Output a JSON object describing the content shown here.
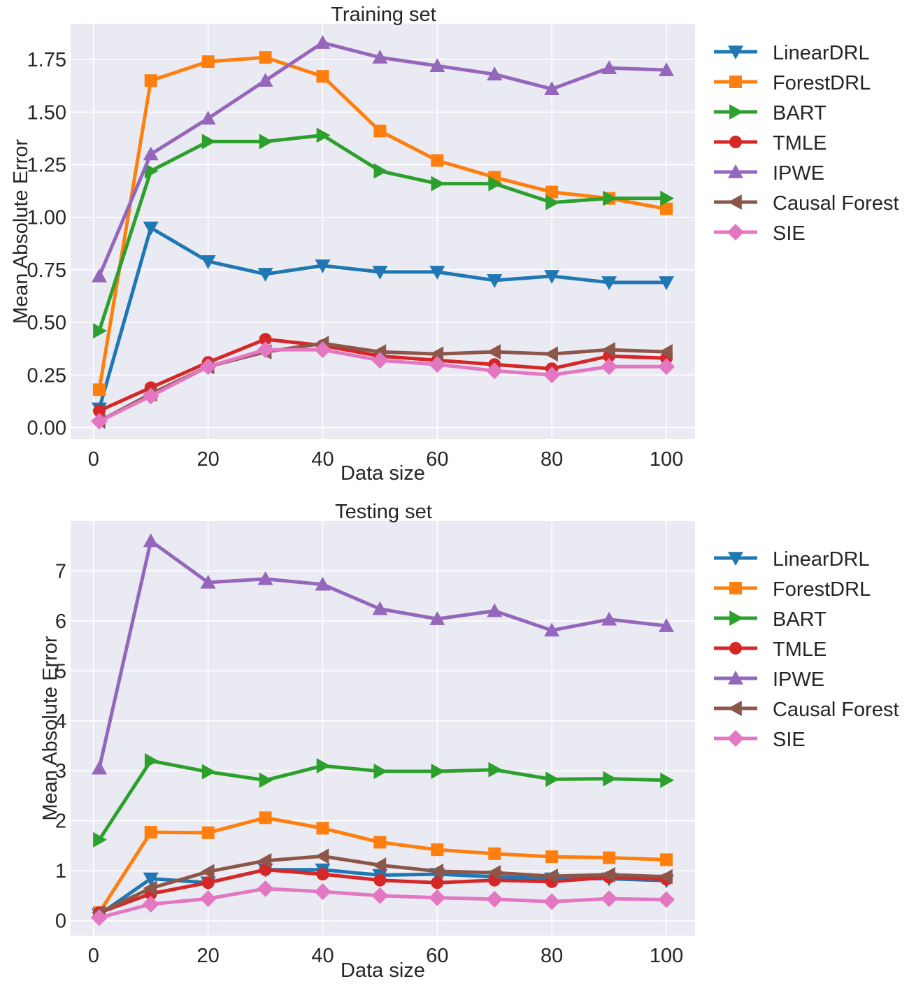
{
  "chart_data": [
    {
      "type": "line",
      "title": "Training set",
      "xlabel": "Data size",
      "ylabel": "Mean Absolute Error",
      "xlim": [
        -4,
        105
      ],
      "ylim": [
        -0.055,
        1.92
      ],
      "xticks": [
        0,
        20,
        40,
        60,
        80,
        100
      ],
      "xtick_labels": [
        "0",
        "20",
        "40",
        "60",
        "80",
        "100"
      ],
      "yticks": [
        0.0,
        0.25,
        0.5,
        0.75,
        1.0,
        1.25,
        1.5,
        1.75
      ],
      "ytick_labels": [
        "0.00",
        "0.25",
        "0.50",
        "0.75",
        "1.00",
        "1.25",
        "1.50",
        "1.75"
      ],
      "grid": true,
      "legend_position": "outside-right",
      "x": [
        1,
        10,
        20,
        30,
        40,
        50,
        60,
        70,
        80,
        90,
        100
      ],
      "series": [
        {
          "name": "LinearDRL",
          "color": "#1f77b4",
          "marker": "triangle-down",
          "values": [
            0.09,
            0.95,
            0.79,
            0.73,
            0.77,
            0.74,
            0.74,
            0.7,
            0.72,
            0.69,
            0.69
          ]
        },
        {
          "name": "ForestDRL",
          "color": "#ff7f0e",
          "marker": "square",
          "values": [
            0.18,
            1.65,
            1.74,
            1.76,
            1.67,
            1.41,
            1.27,
            1.19,
            1.12,
            1.09,
            1.04
          ]
        },
        {
          "name": "BART",
          "color": "#2ca02c",
          "marker": "triangle-right",
          "values": [
            0.46,
            1.22,
            1.36,
            1.36,
            1.39,
            1.22,
            1.16,
            1.16,
            1.07,
            1.09,
            1.09
          ]
        },
        {
          "name": "TMLE",
          "color": "#d62728",
          "marker": "circle",
          "values": [
            0.08,
            0.19,
            0.31,
            0.42,
            0.39,
            0.34,
            0.32,
            0.3,
            0.28,
            0.34,
            0.33
          ]
        },
        {
          "name": "IPWE",
          "color": "#9467bd",
          "marker": "triangle-up",
          "values": [
            0.72,
            1.3,
            1.47,
            1.65,
            1.83,
            1.76,
            1.72,
            1.68,
            1.61,
            1.71,
            1.7
          ]
        },
        {
          "name": "Causal Forest",
          "color": "#8c564b",
          "marker": "triangle-left",
          "values": [
            0.03,
            0.16,
            0.29,
            0.36,
            0.4,
            0.36,
            0.35,
            0.36,
            0.35,
            0.37,
            0.36
          ]
        },
        {
          "name": "SIE",
          "color": "#e377c2",
          "marker": "diamond",
          "values": [
            0.03,
            0.15,
            0.29,
            0.37,
            0.37,
            0.32,
            0.3,
            0.27,
            0.25,
            0.29,
            0.29
          ]
        }
      ]
    },
    {
      "type": "line",
      "title": "Testing set",
      "xlabel": "Data size",
      "ylabel": "Mean Absolute Error",
      "xlim": [
        -4,
        105
      ],
      "ylim": [
        -0.3,
        8.0
      ],
      "xticks": [
        0,
        20,
        40,
        60,
        80,
        100
      ],
      "xtick_labels": [
        "0",
        "20",
        "40",
        "60",
        "80",
        "100"
      ],
      "yticks": [
        0,
        1,
        2,
        3,
        4,
        5,
        6,
        7
      ],
      "ytick_labels": [
        "0",
        "1",
        "2",
        "3",
        "4",
        "5",
        "6",
        "7"
      ],
      "grid": true,
      "legend_position": "outside-right",
      "x": [
        1,
        10,
        20,
        30,
        40,
        50,
        60,
        70,
        80,
        90,
        100
      ],
      "series": [
        {
          "name": "LinearDRL",
          "color": "#1f77b4",
          "marker": "triangle-down",
          "values": [
            0.12,
            0.84,
            0.76,
            1.02,
            1.02,
            0.91,
            0.93,
            0.88,
            0.84,
            0.84,
            0.8
          ]
        },
        {
          "name": "ForestDRL",
          "color": "#ff7f0e",
          "marker": "square",
          "values": [
            0.16,
            1.77,
            1.76,
            2.06,
            1.85,
            1.57,
            1.42,
            1.34,
            1.28,
            1.26,
            1.22
          ]
        },
        {
          "name": "BART",
          "color": "#2ca02c",
          "marker": "triangle-right",
          "values": [
            1.62,
            3.2,
            2.98,
            2.81,
            3.1,
            2.99,
            2.99,
            3.02,
            2.83,
            2.84,
            2.81
          ]
        },
        {
          "name": "TMLE",
          "color": "#d62728",
          "marker": "circle",
          "values": [
            0.16,
            0.54,
            0.76,
            1.02,
            0.93,
            0.81,
            0.76,
            0.81,
            0.78,
            0.87,
            0.83
          ]
        },
        {
          "name": "IPWE",
          "color": "#9467bd",
          "marker": "triangle-up",
          "values": [
            3.05,
            7.6,
            6.77,
            6.84,
            6.73,
            6.24,
            6.04,
            6.2,
            5.81,
            6.03,
            5.9
          ]
        },
        {
          "name": "Causal Forest",
          "color": "#8c564b",
          "marker": "triangle-left",
          "values": [
            0.16,
            0.65,
            0.98,
            1.2,
            1.29,
            1.11,
            0.99,
            0.96,
            0.89,
            0.92,
            0.88
          ]
        },
        {
          "name": "SIE",
          "color": "#e377c2",
          "marker": "diamond",
          "values": [
            0.06,
            0.33,
            0.44,
            0.64,
            0.58,
            0.5,
            0.46,
            0.43,
            0.38,
            0.44,
            0.42
          ]
        }
      ]
    }
  ]
}
